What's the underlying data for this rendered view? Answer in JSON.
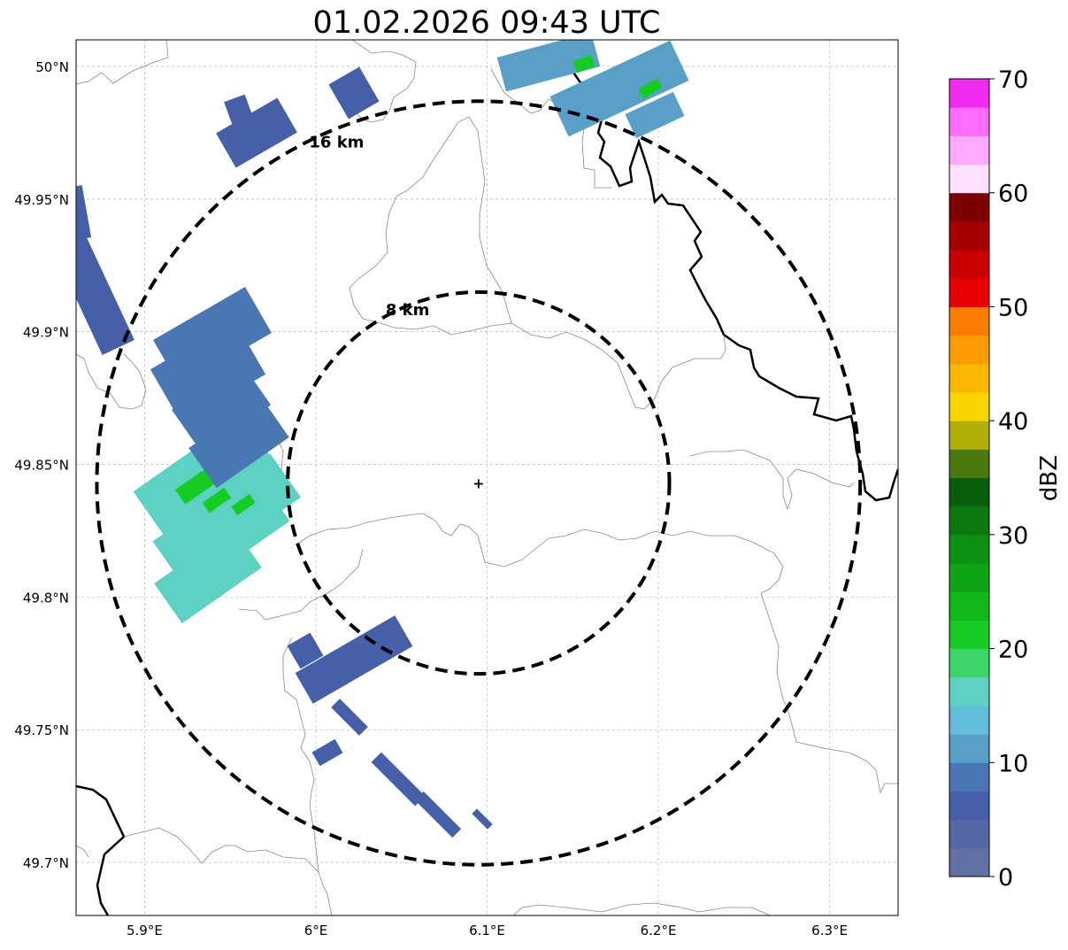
{
  "title": "01.02.2026 09:43 UTC",
  "map": {
    "lon_range": [
      5.86,
      6.34
    ],
    "lat_range": [
      49.68,
      50.01
    ],
    "radar_center": {
      "lon": 6.095,
      "lat": 49.843
    },
    "lon_ticks": [
      {
        "value": 5.9,
        "label": "5.9°E"
      },
      {
        "value": 6.0,
        "label": "6°E"
      },
      {
        "value": 6.1,
        "label": "6.1°E"
      },
      {
        "value": 6.2,
        "label": "6.2°E"
      },
      {
        "value": 6.3,
        "label": "6.3°E"
      }
    ],
    "lat_ticks": [
      {
        "value": 50.0,
        "label": "50°N"
      },
      {
        "value": 49.95,
        "label": "49.95°N"
      },
      {
        "value": 49.9,
        "label": "49.9°N"
      },
      {
        "value": 49.85,
        "label": "49.85°N"
      },
      {
        "value": 49.8,
        "label": "49.8°N"
      },
      {
        "value": 49.75,
        "label": "49.75°N"
      },
      {
        "value": 49.7,
        "label": "49.7°N"
      }
    ],
    "range_rings": [
      {
        "label": "8 km",
        "radius_km": 8
      },
      {
        "label": "16 km",
        "radius_km": 16
      }
    ]
  },
  "colorbar": {
    "label": "dBZ",
    "min": 0,
    "max": 70,
    "step": 2.5,
    "tick_labels": [
      "0",
      "10",
      "20",
      "30",
      "40",
      "50",
      "60",
      "70"
    ],
    "colors": [
      "#6272a4",
      "#5567a4",
      "#4560a8",
      "#4a77b4",
      "#58a0c8",
      "#62bedb",
      "#5ed2c2",
      "#3dd46a",
      "#14cc22",
      "#10b818",
      "#0ea414",
      "#0c9212",
      "#0a7a10",
      "#075f0c",
      "#4a7a0e",
      "#afaf06",
      "#fcd400",
      "#fcb800",
      "#fc9c00",
      "#fc7c00",
      "#e80000",
      "#c80000",
      "#a40000",
      "#7c0000",
      "#ffe0ff",
      "#ffaaff",
      "#ff6cff",
      "#f02cf0"
    ]
  },
  "reflectivity": [
    {
      "name": "cell-west-large",
      "lon": 5.935,
      "lat": 49.84,
      "dbz": 16
    },
    {
      "name": "cell-west-core",
      "lon": 5.92,
      "lat": 49.838,
      "dbz": 22
    },
    {
      "name": "cell-west-upper",
      "lon": 5.94,
      "lat": 49.88,
      "dbz": 8
    },
    {
      "name": "cell-northwest",
      "lon": 5.96,
      "lat": 49.97,
      "dbz": 7
    },
    {
      "name": "cell-north",
      "lon": 6.17,
      "lat": 49.99,
      "dbz": 12
    },
    {
      "name": "cell-north-core",
      "lon": 6.155,
      "lat": 50.0,
      "dbz": 20
    },
    {
      "name": "cell-south",
      "lon": 6.02,
      "lat": 49.78,
      "dbz": 5
    },
    {
      "name": "band-southeast",
      "lon": 6.03,
      "lat": 49.73,
      "dbz": 6
    },
    {
      "name": "edge-west",
      "lon": 5.87,
      "lat": 49.92,
      "dbz": 5
    }
  ]
}
